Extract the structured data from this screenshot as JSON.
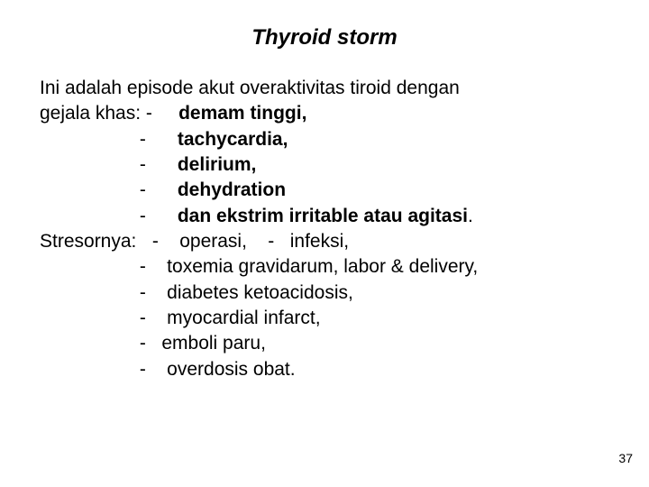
{
  "title": {
    "text": "Thyroid storm",
    "fontsize": 24,
    "color": "#000000"
  },
  "body": {
    "fontsize": 21,
    "color": "#000000",
    "lines": [
      {
        "text": "Ini adalah episode akut overaktivitas tiroid dengan"
      },
      {
        "segments": [
          {
            "text": "gejala khas: -     "
          },
          {
            "text": "demam tinggi,",
            "bold": true
          }
        ]
      },
      {
        "segments": [
          {
            "text": "                   -      "
          },
          {
            "text": "tachycardia,",
            "bold": true
          }
        ]
      },
      {
        "segments": [
          {
            "text": "                   -      "
          },
          {
            "text": "delirium,",
            "bold": true
          }
        ]
      },
      {
        "segments": [
          {
            "text": "                   -      "
          },
          {
            "text": "dehydration",
            "bold": true
          }
        ]
      },
      {
        "segments": [
          {
            "text": "                   -      "
          },
          {
            "text": "dan ekstrim irritable atau agitasi",
            "bold": true
          },
          {
            "text": "."
          }
        ]
      },
      {
        "text": "Stresornya:   -    operasi,    -   infeksi,"
      },
      {
        "text": "                   -    toxemia gravidarum, labor & delivery,"
      },
      {
        "text": "                   -    diabetes ketoacidosis,"
      },
      {
        "text": "                   -    myocardial infarct,"
      },
      {
        "text": "                   -   emboli paru,"
      },
      {
        "text": "                   -    overdosis obat."
      }
    ]
  },
  "page_number": "37",
  "background_color": "#ffffff"
}
